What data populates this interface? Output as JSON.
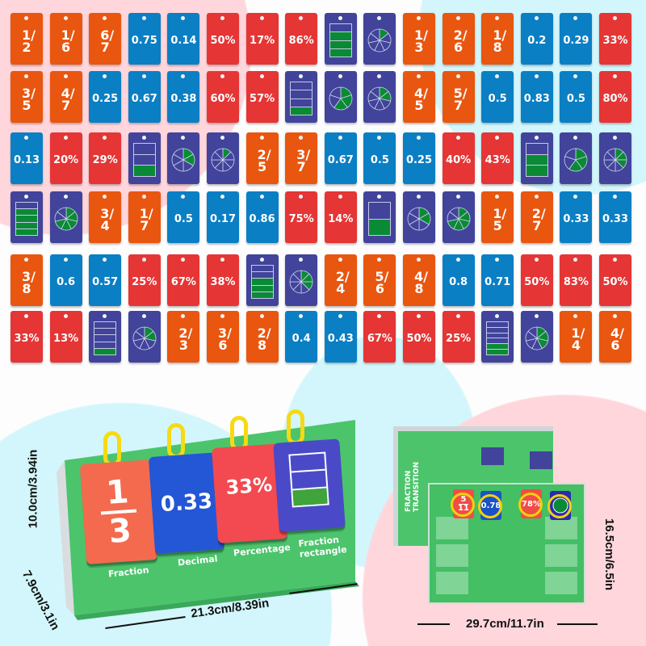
{
  "colors": {
    "fraction": "#e9560f",
    "decimal": "#0a7fc4",
    "percentage": "#e53535",
    "shape": "#41449a",
    "shaded": "#0a8a35",
    "stand": "#4cc46c",
    "ring": "#f7d914"
  },
  "card_grid": [
    [
      "1/2",
      "1/6",
      "6/7",
      "0.75",
      "0.14",
      "50%",
      "17%",
      "86%",
      "rect:4:3",
      "pie:7:1",
      "1/3",
      "2/6",
      "1/8",
      "0.2",
      "0.29",
      "33%"
    ],
    [
      "3/5",
      "4/7",
      "0.25",
      "0.67",
      "0.38",
      "60%",
      "57%",
      "rect:4:1",
      "pie:5:3",
      "pie:7:2",
      "4/5",
      "5/7",
      "0.5",
      "0.83",
      "0.5",
      "80%"
    ],
    [
      "0.13",
      "20%",
      "29%",
      "rect:3:1",
      "pie:6:2",
      "pie:8:1",
      "2/5",
      "3/7",
      "0.67",
      "0.5",
      "0.25",
      "40%",
      "43%",
      "rect:3:2",
      "pie:5:3",
      "pie:8:3"
    ],
    [
      "rect:5:4",
      "pie:7:5",
      "3/4",
      "1/7",
      "0.5",
      "0.17",
      "0.86",
      "75%",
      "14%",
      "rect:2:1",
      "pie:6:2",
      "pie:7:5",
      "1/5",
      "2/7",
      "0.33",
      "0.33"
    ],
    [
      "3/8",
      "0.6",
      "0.57",
      "25%",
      "67%",
      "38%",
      "rect:5:3",
      "pie:8:3",
      "2/4",
      "5/6",
      "4/8",
      "0.8",
      "0.71",
      "50%",
      "83%",
      "50%"
    ],
    [
      "33%",
      "13%",
      "rect:5:1",
      "pie:7:2",
      "2/3",
      "3/6",
      "2/8",
      "0.4",
      "0.43",
      "67%",
      "50%",
      "25%",
      "rect:6:2",
      "pie:7:3",
      "1/4",
      "4/6"
    ]
  ],
  "stand": {
    "fraction_card": {
      "numerator": "1",
      "denominator": "3"
    },
    "decimal_card": "0.33",
    "percentage_card": "33%",
    "rectangle_card": {
      "parts": 3,
      "shaded": 1
    },
    "labels": [
      "Fraction",
      "Decimal",
      "Percentage",
      "Fraction",
      "rectangle"
    ]
  },
  "sheets": {
    "title_line1": "FRACTION",
    "title_line2": "TRANSITION",
    "mini_fraction": {
      "numerator": "5",
      "denominator": "11"
    },
    "mini_decimal": "0.78",
    "mini_percentage": "78%",
    "mini_pie": {
      "parts": 12,
      "shaded": 9
    }
  },
  "dimensions": {
    "stand_height": "10.0cm/3.94in",
    "stand_depth": "7.9cm/3.1in",
    "stand_width": "21.3cm/8.39in",
    "sheet_width": "29.7cm/11.7in",
    "sheet_height": "16.5cm/6.5in"
  }
}
